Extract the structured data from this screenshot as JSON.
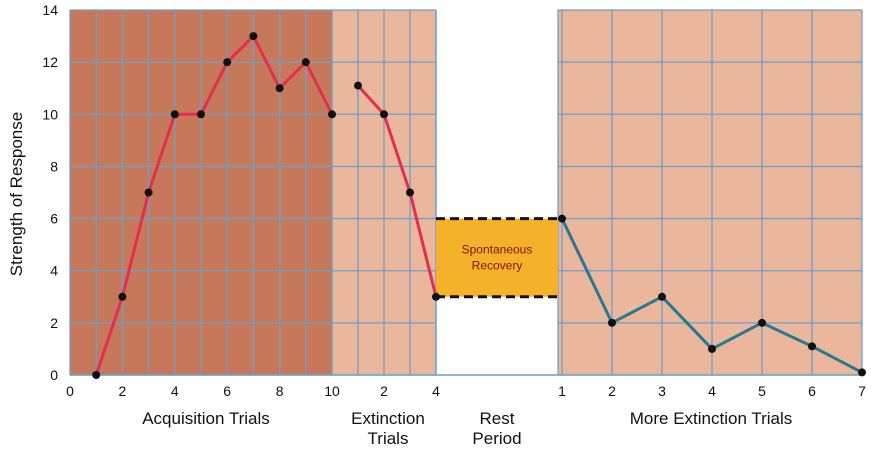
{
  "chart_data": {
    "type": "line",
    "ylabel": "Strength of Response",
    "ylim": [
      0,
      14
    ],
    "y_ticks": [
      "0",
      "2",
      "4",
      "6",
      "8",
      "10",
      "12",
      "14"
    ],
    "grid": true,
    "colors": {
      "acquisition_bg": "#c8785a",
      "extinction_bg": "#eab79d",
      "rest_bg": "#ffffff",
      "more_extinction_bg": "#eab79d",
      "grid": "#6e9fc8",
      "acquisition_line": "#e03050",
      "extinction_line": "#e03050",
      "more_extinction_line": "#2a7890",
      "recovery_box": "#f4b12a",
      "point": "#111111"
    },
    "sections": [
      {
        "name": "Acquisition Trials",
        "label_lines": [
          "Acquisition Trials"
        ],
        "x_ticks": [
          "0",
          "2",
          "4",
          "6",
          "8",
          "10"
        ],
        "series": {
          "x": [
            1,
            2,
            3,
            4,
            5,
            6,
            7,
            8,
            9,
            10
          ],
          "y": [
            0,
            3,
            7,
            10,
            10,
            12,
            13,
            11,
            12,
            10
          ]
        }
      },
      {
        "name": "Extinction Trials",
        "label_lines": [
          "Extinction",
          "Trials"
        ],
        "x_ticks": [
          "2",
          "4"
        ],
        "series": {
          "x": [
            1,
            2,
            3,
            4
          ],
          "y": [
            11.1,
            10,
            7,
            3
          ]
        }
      },
      {
        "name": "Rest Period",
        "label_lines": [
          "Rest",
          "Period"
        ],
        "annotation": {
          "lines": [
            "Spontaneous",
            "Recovery"
          ],
          "y_range": [
            3,
            6
          ]
        }
      },
      {
        "name": "More Extinction Trials",
        "label_lines": [
          "More Extinction Trials"
        ],
        "x_ticks": [
          "1",
          "2",
          "3",
          "4",
          "5",
          "6",
          "7"
        ],
        "series": {
          "x": [
            1,
            2,
            3,
            4,
            5,
            6,
            7
          ],
          "y": [
            6,
            2,
            3,
            1,
            2,
            1.1,
            0.1
          ]
        }
      }
    ]
  }
}
